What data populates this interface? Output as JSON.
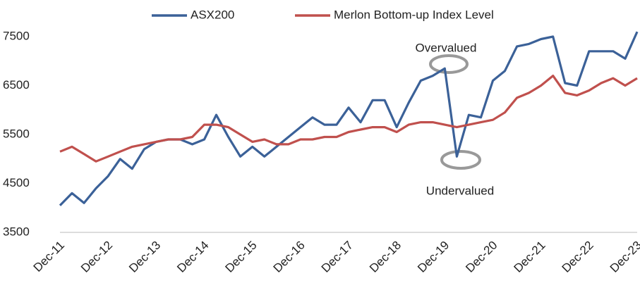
{
  "chart_data": {
    "type": "line",
    "categories": [
      "Dec-11",
      null,
      null,
      null,
      "Dec-12",
      null,
      null,
      null,
      "Dec-13",
      null,
      null,
      null,
      "Dec-14",
      null,
      null,
      null,
      "Dec-15",
      null,
      null,
      null,
      "Dec-16",
      null,
      null,
      null,
      "Dec-17",
      null,
      null,
      null,
      "Dec-18",
      null,
      null,
      null,
      "Dec-19",
      null,
      null,
      null,
      "Dec-20",
      null,
      null,
      null,
      "Dec-21",
      null,
      null,
      null,
      "Dec-22",
      null,
      null,
      null,
      "Dec-23"
    ],
    "series": [
      {
        "name": "ASX200",
        "color": "#3b6198",
        "values": [
          4050,
          4300,
          4100,
          4400,
          4650,
          5000,
          4800,
          5200,
          5350,
          5400,
          5400,
          5300,
          5400,
          5900,
          5450,
          5050,
          5250,
          5050,
          5250,
          5450,
          5650,
          5850,
          5700,
          5700,
          6050,
          5750,
          6200,
          6200,
          5650,
          6150,
          6600,
          6700,
          6850,
          5050,
          5900,
          5850,
          6600,
          6800,
          7300,
          7350,
          7450,
          7500,
          6550,
          6500,
          7200,
          7200,
          7200,
          7050,
          7600
        ]
      },
      {
        "name": "Merlon Bottom-up Index Level",
        "color": "#c0504d",
        "values": [
          5150,
          5250,
          5100,
          4950,
          5050,
          5150,
          5250,
          5300,
          5350,
          5400,
          5400,
          5450,
          5700,
          5700,
          5650,
          5500,
          5350,
          5400,
          5300,
          5300,
          5400,
          5400,
          5450,
          5450,
          5550,
          5600,
          5650,
          5650,
          5550,
          5700,
          5750,
          5750,
          5700,
          5650,
          5700,
          5750,
          5800,
          5950,
          6250,
          6350,
          6500,
          6700,
          6350,
          6300,
          6400,
          6550,
          6650,
          6500,
          6650
        ]
      }
    ],
    "annotations": [
      "Overvalued",
      "Undervalued"
    ],
    "ylim": [
      3500,
      7500
    ],
    "yticks": [
      3500,
      4500,
      5500,
      6500,
      7500
    ],
    "grid": false,
    "legend": "top"
  }
}
